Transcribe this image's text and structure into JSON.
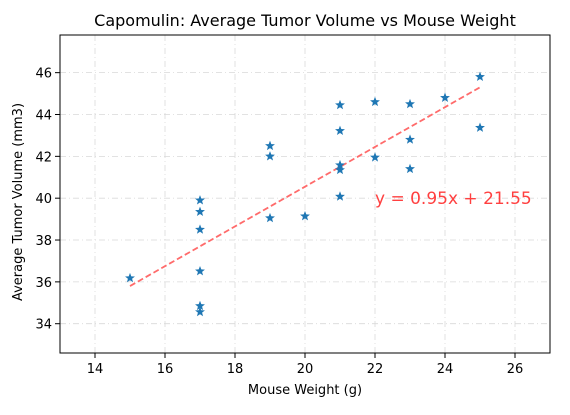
{
  "chart_data": {
    "type": "scatter",
    "title": "Capomulin: Average Tumor Volume vs Mouse Weight",
    "xlabel": "Mouse Weight (g)",
    "ylabel": "Average Tumor Volume (mm3)",
    "xlim": [
      13,
      27
    ],
    "ylim": [
      32.6,
      47.8
    ],
    "xticks": [
      "14",
      "16",
      "18",
      "20",
      "22",
      "24",
      "26"
    ],
    "yticks": [
      "34",
      "36",
      "38",
      "40",
      "42",
      "44",
      "46"
    ],
    "grid": true,
    "marker": "star",
    "points": [
      {
        "x": 15,
        "y": 36.18
      },
      {
        "x": 17,
        "y": 39.9
      },
      {
        "x": 17,
        "y": 39.35
      },
      {
        "x": 17,
        "y": 38.5
      },
      {
        "x": 17,
        "y": 36.51
      },
      {
        "x": 17,
        "y": 34.85
      },
      {
        "x": 17,
        "y": 34.56
      },
      {
        "x": 19,
        "y": 42.5
      },
      {
        "x": 19,
        "y": 42.0
      },
      {
        "x": 19,
        "y": 39.05
      },
      {
        "x": 20,
        "y": 39.14
      },
      {
        "x": 21,
        "y": 44.45
      },
      {
        "x": 21,
        "y": 43.22
      },
      {
        "x": 21,
        "y": 41.58
      },
      {
        "x": 21,
        "y": 41.35
      },
      {
        "x": 21,
        "y": 40.08
      },
      {
        "x": 22,
        "y": 44.6
      },
      {
        "x": 22,
        "y": 41.95
      },
      {
        "x": 23,
        "y": 44.5
      },
      {
        "x": 23,
        "y": 42.8
      },
      {
        "x": 23,
        "y": 41.4
      },
      {
        "x": 24,
        "y": 44.8
      },
      {
        "x": 25,
        "y": 45.8
      },
      {
        "x": 25,
        "y": 43.37
      }
    ],
    "regression": {
      "slope": 0.95,
      "intercept": 21.55,
      "x_range": [
        15,
        25
      ],
      "equation": "y = 0.95x + 21.55",
      "annotation_x": 22,
      "annotation_y": 40
    },
    "colors": {
      "marker": "#1f77b4",
      "line": "#ff6b6b",
      "annotation": "#ff4040",
      "grid": "#d9d9d9"
    }
  }
}
